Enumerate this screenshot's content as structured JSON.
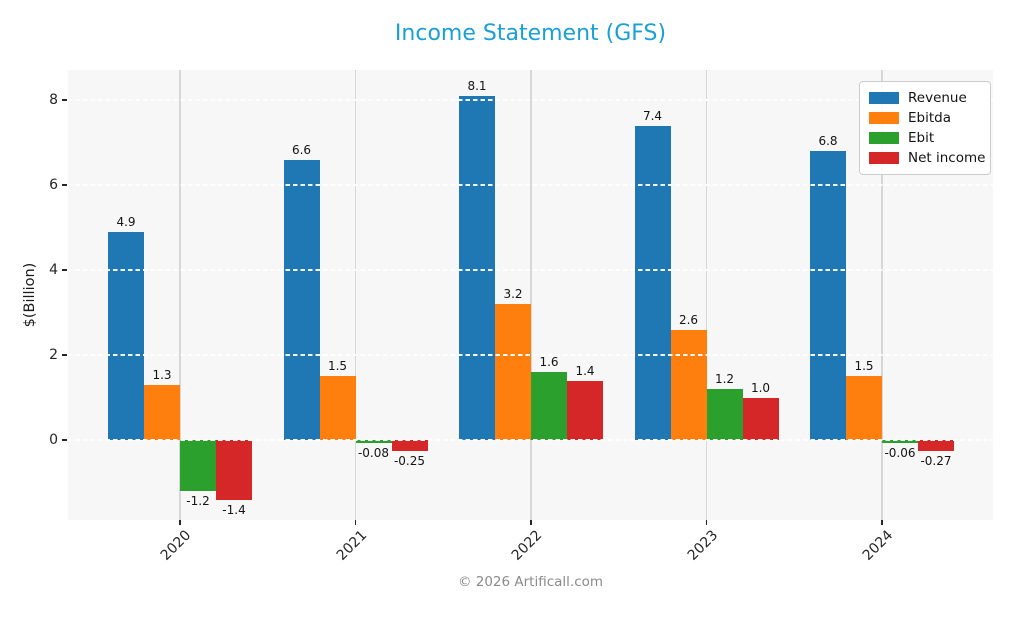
{
  "title": "Income Statement (GFS)",
  "title_color": "#1aa0d9",
  "footer": "© 2026 Artificall.com",
  "chart_data": {
    "type": "bar",
    "title": "Income Statement (GFS)",
    "xlabel": "",
    "ylabel": "$(Billion)",
    "categories": [
      "2020",
      "2021",
      "2022",
      "2023",
      "2024"
    ],
    "series": [
      {
        "name": "Revenue",
        "color": "#1f77b4",
        "values": [
          4.9,
          6.6,
          8.1,
          7.4,
          6.8
        ],
        "labels": [
          "4.9",
          "6.6",
          "8.1",
          "7.4",
          "6.8"
        ]
      },
      {
        "name": "Ebitda",
        "color": "#ff7f0e",
        "values": [
          1.3,
          1.5,
          3.2,
          2.6,
          1.5
        ],
        "labels": [
          "1.3",
          "1.5",
          "3.2",
          "2.6",
          "1.5"
        ]
      },
      {
        "name": "Ebit",
        "color": "#2ca02c",
        "values": [
          -1.2,
          -0.08,
          1.6,
          1.2,
          -0.06
        ],
        "labels": [
          "-1.2",
          "-0.08",
          "1.6",
          "1.2",
          "-0.06"
        ]
      },
      {
        "name": "Net income",
        "color": "#d62728",
        "values": [
          -1.4,
          -0.25,
          1.4,
          1.0,
          -0.27
        ],
        "labels": [
          "-1.4",
          "-0.25",
          "1.4",
          "1.0",
          "-0.27"
        ]
      }
    ],
    "yticks": [
      0,
      2,
      4,
      6,
      8
    ],
    "ylim": [
      -1.88,
      8.71
    ],
    "grid": true,
    "gridline_style": "white dashed horizontal, solid gray vertical",
    "legend_position": "upper right",
    "plot_background": "#f7f7f7",
    "x_tick_rotation": 45
  }
}
